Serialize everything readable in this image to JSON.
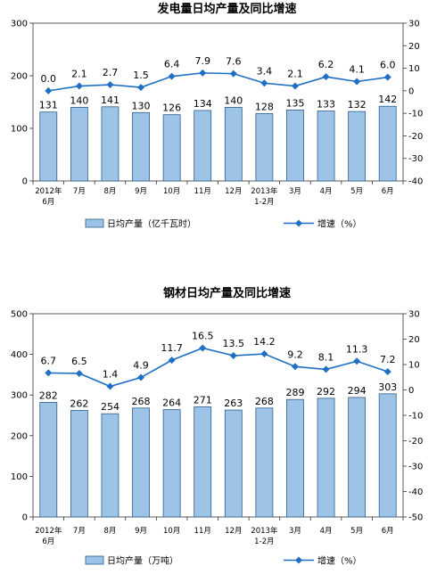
{
  "chart_data": [
    {
      "type": "bar",
      "title": "发电量日均产量及同比增速",
      "categories": [
        [
          "2012年",
          "6月"
        ],
        [
          "7月"
        ],
        [
          "8月"
        ],
        [
          "9月"
        ],
        [
          "10月"
        ],
        [
          "11月"
        ],
        [
          "12月"
        ],
        [
          "2013年",
          "1-2月"
        ],
        [
          "3月"
        ],
        [
          "4月"
        ],
        [
          "5月"
        ],
        [
          "6月"
        ]
      ],
      "series": [
        {
          "name": "日均产量（亿千瓦时）",
          "type": "bar",
          "axis": "left",
          "values": [
            131,
            140,
            141,
            130,
            126,
            134,
            140,
            128,
            135,
            133,
            132,
            142
          ]
        },
        {
          "name": "增速（%）",
          "type": "line",
          "axis": "right",
          "values": [
            0.0,
            2.1,
            2.7,
            1.5,
            6.4,
            7.9,
            7.6,
            3.4,
            2.1,
            6.2,
            4.1,
            6.0
          ]
        }
      ],
      "bar_labels": [
        "131",
        "140",
        "141",
        "130",
        "126",
        "134",
        "140",
        "128",
        "135",
        "133",
        "132",
        "142"
      ],
      "line_labels": [
        "0.0",
        "2.1",
        "2.7",
        "1.5",
        "6.4",
        "7.9",
        "7.6",
        "3.4",
        "2.1",
        "6.2",
        "4.1",
        "6.0"
      ],
      "ylim_left": [
        0,
        300
      ],
      "yticks_left": [
        "0",
        "100",
        "200",
        "300"
      ],
      "ylim_right": [
        -40,
        30
      ],
      "yticks_right": [
        "-40",
        "-30",
        "-20",
        "-10",
        "0",
        "10",
        "20",
        "30"
      ],
      "legend": "bottom"
    },
    {
      "type": "bar",
      "title": "钢材日均产量及同比增速",
      "categories": [
        [
          "2012年",
          "6月"
        ],
        [
          "7月"
        ],
        [
          "8月"
        ],
        [
          "9月"
        ],
        [
          "10月"
        ],
        [
          "11月"
        ],
        [
          "12月"
        ],
        [
          "2013年",
          "1-2月"
        ],
        [
          "3月"
        ],
        [
          "4月"
        ],
        [
          "5月"
        ],
        [
          "6月"
        ]
      ],
      "series": [
        {
          "name": "日均产量（万吨）",
          "type": "bar",
          "axis": "left",
          "values": [
            282,
            262,
            254,
            268,
            264,
            271,
            263,
            268,
            289,
            292,
            294,
            303
          ]
        },
        {
          "name": "增速（%）",
          "type": "line",
          "axis": "right",
          "values": [
            6.7,
            6.5,
            1.4,
            4.9,
            11.7,
            16.5,
            13.5,
            14.2,
            9.2,
            8.1,
            11.3,
            7.2
          ]
        }
      ],
      "bar_labels": [
        "282",
        "262",
        "254",
        "268",
        "264",
        "271",
        "263",
        "268",
        "289",
        "292",
        "294",
        "303"
      ],
      "line_labels": [
        "6.7",
        "6.5",
        "1.4",
        "4.9",
        "11.7",
        "16.5",
        "13.5",
        "14.2",
        "9.2",
        "8.1",
        "11.3",
        "7.2"
      ],
      "ylim_left": [
        0,
        500
      ],
      "yticks_left": [
        "0",
        "100",
        "200",
        "300",
        "400",
        "500"
      ],
      "ylim_right": [
        -50,
        30
      ],
      "yticks_right": [
        "-50",
        "-40",
        "-30",
        "-20",
        "-10",
        "0",
        "10",
        "20",
        "30"
      ],
      "legend": "bottom"
    }
  ],
  "colors": {
    "bar_fill": "#9dc3e6",
    "bar_stroke": "#2e5f8a",
    "line": "#1f6fc4",
    "axis": "#333333"
  }
}
